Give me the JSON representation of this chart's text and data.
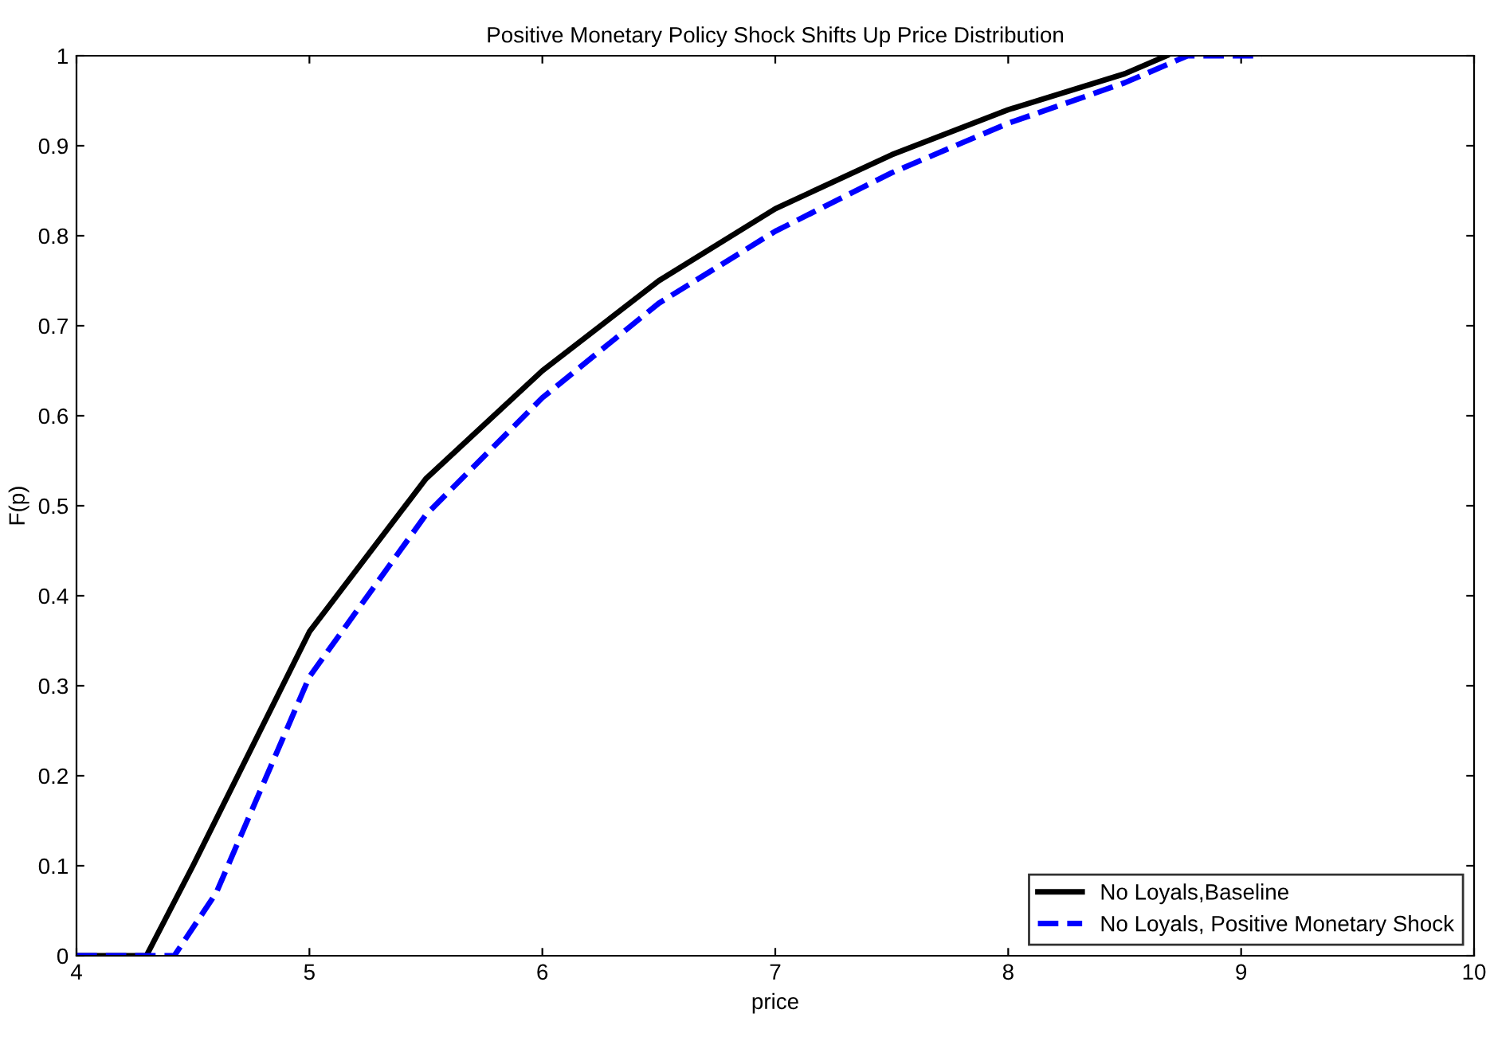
{
  "chart_data": {
    "type": "line",
    "title": "Positive Monetary Policy Shock Shifts Up Price Distribution",
    "xlabel": "price",
    "ylabel": "F(p)",
    "series": [
      {
        "name": "No Loyals,Baseline",
        "color": "#000000",
        "line_style": "solid",
        "x": [
          4,
          4.3,
          4.5,
          5,
          5.5,
          6,
          6.5,
          7,
          7.5,
          8,
          8.5,
          8.68
        ],
        "values": [
          0,
          0,
          0.1,
          0.36,
          0.53,
          0.65,
          0.75,
          0.83,
          0.89,
          0.94,
          0.98,
          1
        ]
      },
      {
        "name": "No Loyals, Positive Monetary Shock",
        "color": "#0000ff",
        "line_style": "dashed",
        "x": [
          4,
          4.42,
          4.6,
          5,
          5.5,
          6,
          6.5,
          7,
          7.5,
          8,
          8.5,
          8.77,
          9.09
        ],
        "values": [
          0,
          0,
          0.07,
          0.31,
          0.49,
          0.62,
          0.725,
          0.805,
          0.87,
          0.925,
          0.97,
          1,
          1
        ]
      }
    ],
    "xlim": [
      4,
      10
    ],
    "xticks": [
      4,
      5,
      6,
      7,
      8,
      9,
      10
    ],
    "ylim": [
      0,
      1
    ],
    "yticks": [
      0,
      0.1,
      0.2,
      0.3,
      0.4,
      0.5,
      0.6,
      0.7,
      0.8,
      0.9,
      1
    ],
    "grid": false,
    "legend": "bottom right"
  }
}
